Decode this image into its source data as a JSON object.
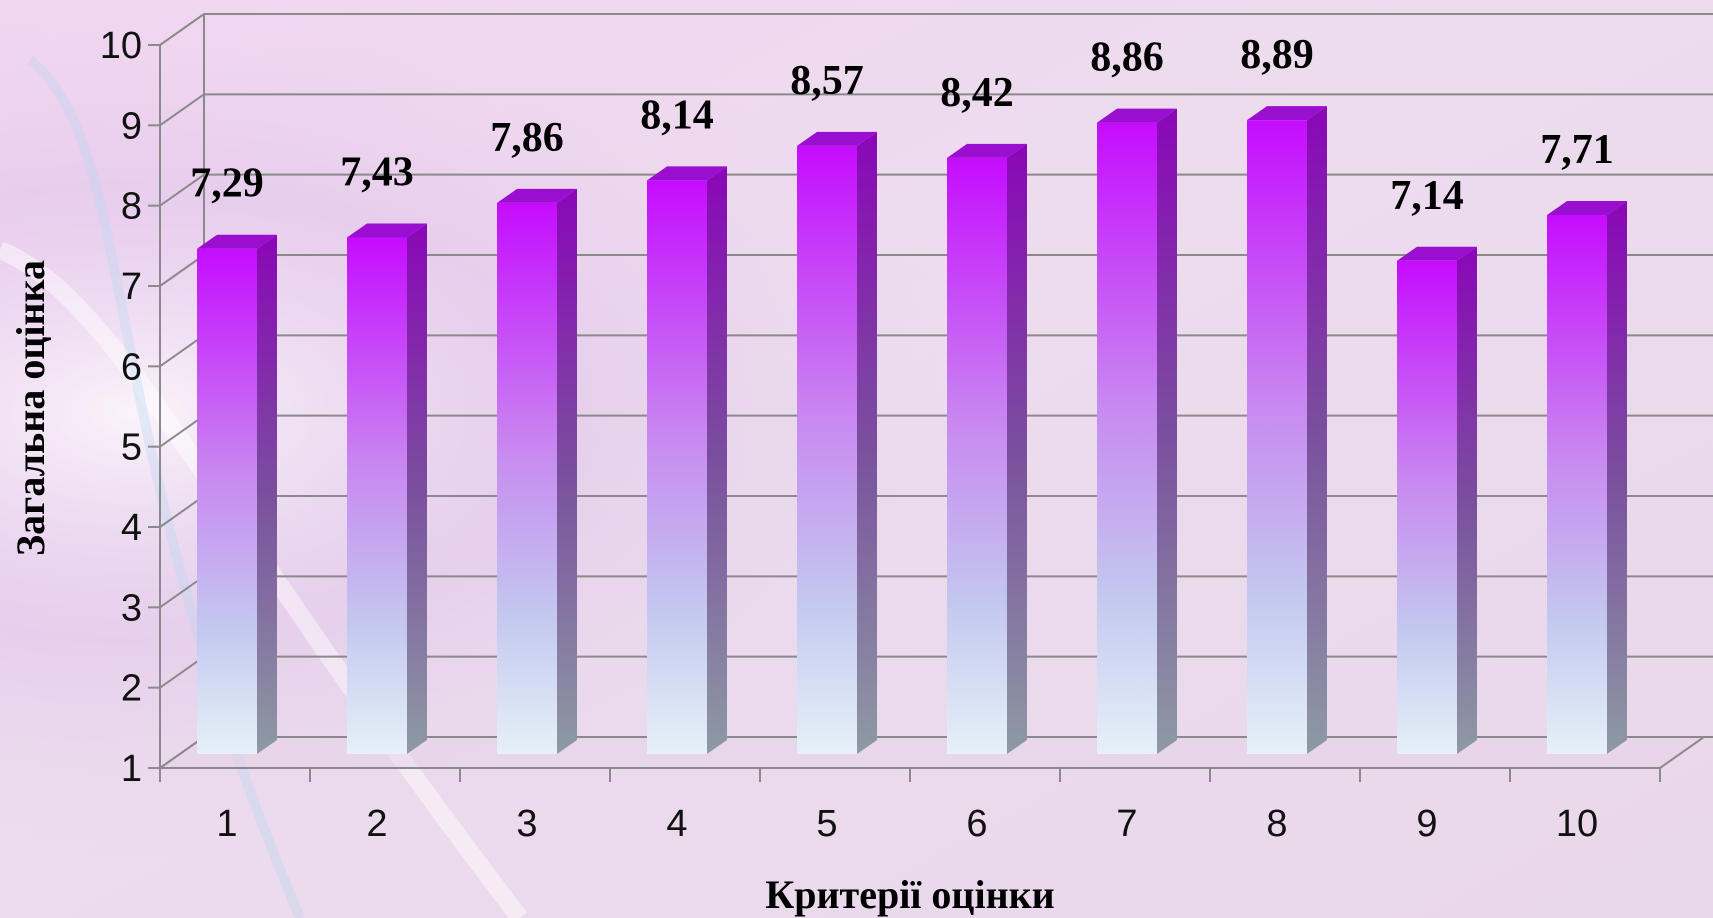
{
  "chart_data": {
    "type": "bar",
    "categories": [
      "1",
      "2",
      "3",
      "4",
      "5",
      "6",
      "7",
      "8",
      "9",
      "10"
    ],
    "values": [
      7.29,
      7.43,
      7.86,
      8.14,
      8.57,
      8.42,
      8.86,
      8.89,
      7.14,
      7.71
    ],
    "value_labels": [
      "7,29",
      "7,43",
      "7,86",
      "8,14",
      "8,57",
      "8,42",
      "8,86",
      "8,89",
      "7,14",
      "7,71"
    ],
    "ylabel": "Загальна оцінка",
    "xlabel": "Критерії оцінки",
    "ylim": [
      1,
      10
    ],
    "yticks": [
      "1",
      "2",
      "3",
      "4",
      "5",
      "6",
      "7",
      "8",
      "9",
      "10"
    ],
    "grid": true,
    "bar_colors": {
      "top": "#c60cff",
      "bottom": "#e4eef8",
      "side": "#7b2a9e"
    }
  }
}
